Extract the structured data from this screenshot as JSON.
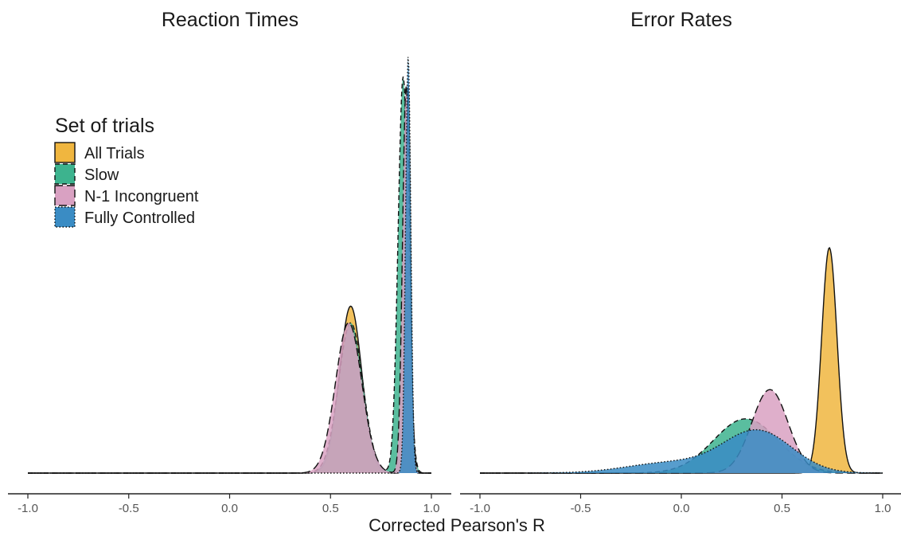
{
  "chart_data": [
    {
      "panel": "left",
      "type": "area",
      "title": "Reaction Times",
      "xlim": [
        -1.0,
        1.0
      ],
      "x_ticks": [
        "-1.0",
        "-0.5",
        "0.0",
        "0.5",
        "1.0"
      ],
      "grid": false,
      "series": [
        {
          "name": "All Trials",
          "components": [
            {
              "mu": 0.6,
              "sigma": 0.055,
              "peak": 0.4
            },
            {
              "mu": 0.885,
              "sigma": 0.012,
              "peak": 0.93
            }
          ]
        },
        {
          "name": "Slow",
          "components": [
            {
              "mu": 0.6,
              "sigma": 0.06,
              "peak": 0.36
            },
            {
              "mu": 0.86,
              "sigma": 0.025,
              "peak": 0.95
            }
          ]
        },
        {
          "name": "N-1 Incongruent",
          "components": [
            {
              "mu": 0.59,
              "sigma": 0.065,
              "peak": 0.36
            },
            {
              "mu": 0.875,
              "sigma": 0.018,
              "peak": 0.93
            }
          ]
        },
        {
          "name": "Fully Controlled",
          "components": [
            {
              "mu": 0.885,
              "sigma": 0.013,
              "peak": 1.0
            }
          ]
        }
      ]
    },
    {
      "panel": "right",
      "type": "area",
      "title": "Error Rates",
      "xlim": [
        -1.0,
        1.0
      ],
      "x_ticks": [
        "-1.0",
        "-0.5",
        "0.0",
        "0.5",
        "1.0"
      ],
      "grid": false,
      "series": [
        {
          "name": "All Trials",
          "components": [
            {
              "mu": 0.735,
              "sigma": 0.038,
              "peak": 0.54
            }
          ]
        },
        {
          "name": "Slow",
          "components": [
            {
              "mu": 0.32,
              "sigma": 0.16,
              "peak": 0.13
            }
          ]
        },
        {
          "name": "N-1 Incongruent",
          "components": [
            {
              "mu": 0.44,
              "sigma": 0.09,
              "peak": 0.2
            }
          ]
        },
        {
          "name": "Fully Controlled",
          "components": [
            {
              "mu": 0.38,
              "sigma": 0.17,
              "peak": 0.1
            },
            {
              "mu": -0.05,
              "sigma": 0.22,
              "peak": 0.025
            }
          ]
        }
      ]
    }
  ],
  "axis": {
    "x_title": "Corrected Pearson's R"
  },
  "legend": {
    "title": "Set of trials",
    "placement": "top-left",
    "items": [
      {
        "label": "All Trials",
        "fill": "#F0B63F",
        "line": "solid"
      },
      {
        "label": "Slow",
        "fill": "#3DB38E",
        "line": "dashed"
      },
      {
        "label": "N-1 Incongruent",
        "fill": "#D9A1C2",
        "line": "longdash"
      },
      {
        "label": "Fully Controlled",
        "fill": "#3A8CC4",
        "line": "dotted"
      }
    ]
  },
  "colors": {
    "all_trials": "#F0B63F",
    "slow": "#3DB38E",
    "n1_incongruent": "#D9A1C2",
    "fully_controlled": "#3A8CC4"
  }
}
